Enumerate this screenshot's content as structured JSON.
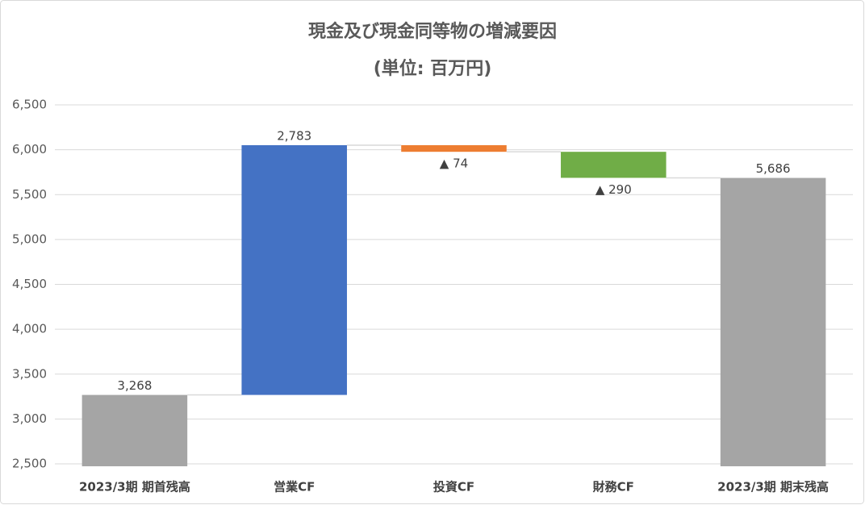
{
  "chart_data": {
    "type": "waterfall",
    "title": "現金及び現金同等物の増減要因",
    "subtitle": "(単位: 百万円)",
    "categories": [
      "2023/3期 期首残高",
      "営業CF",
      "投資CF",
      "財務CF",
      "2023/3期 期末残高"
    ],
    "values": [
      3268,
      2783,
      -74,
      -290,
      5686
    ],
    "value_labels": [
      "3,268",
      "2,783",
      "▲ 74",
      "▲ 290",
      "5,686"
    ],
    "measure": [
      "total",
      "relative",
      "relative",
      "relative",
      "total"
    ],
    "colors": [
      "#a5a5a5",
      "#4472c4",
      "#ed7d31",
      "#70ad47",
      "#a5a5a5"
    ],
    "ylim": [
      2500,
      6500
    ],
    "yticks": [
      {
        "value": 2500,
        "label": "2,500"
      },
      {
        "value": 3000,
        "label": "3,000"
      },
      {
        "value": 3500,
        "label": "3,500"
      },
      {
        "value": 4000,
        "label": "4,000"
      },
      {
        "value": 4500,
        "label": "4,500"
      },
      {
        "value": 5000,
        "label": "5,000"
      },
      {
        "value": 5500,
        "label": "5,500"
      },
      {
        "value": 6000,
        "label": "6,000"
      },
      {
        "value": 6500,
        "label": "6,500"
      }
    ],
    "grid": true
  }
}
